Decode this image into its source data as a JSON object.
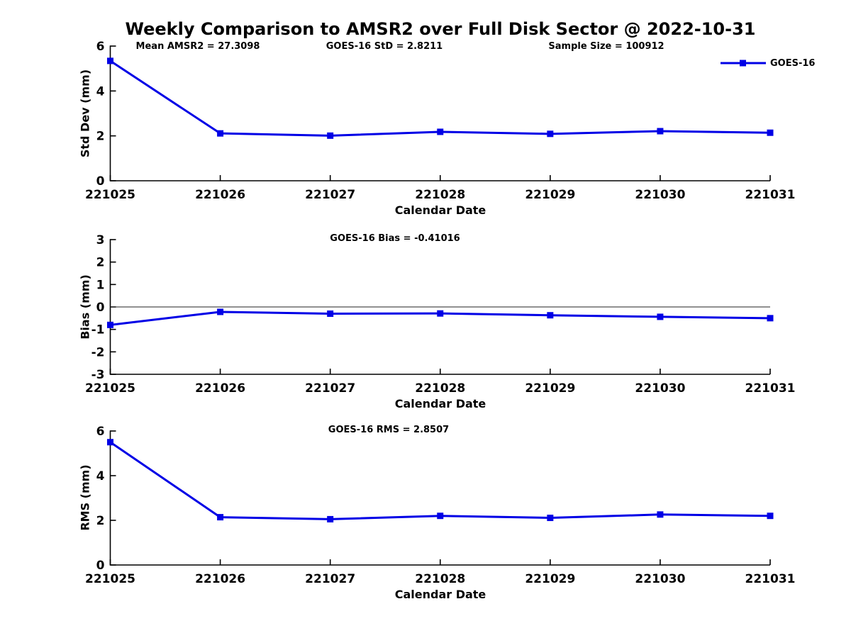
{
  "title": "Weekly Comparison to AMSR2 over Full Disk Sector @ 2022-10-31",
  "legend": {
    "label": "GOES-16"
  },
  "colors": {
    "line": "#0000E6",
    "axis": "#000000",
    "zero_line": "#222222"
  },
  "chart_data": [
    {
      "type": "line",
      "name": "std-dev",
      "annotations": [
        "Mean AMSR2 = 27.3098",
        "GOES-16 StD = 2.8211",
        "Sample Size = 100912"
      ],
      "xlabel": "Calendar Date",
      "ylabel": "Std Dev (mm)",
      "categories": [
        "221025",
        "221026",
        "221027",
        "221028",
        "221029",
        "221030",
        "221031"
      ],
      "series": [
        {
          "name": "GOES-16",
          "values": [
            5.34,
            2.11,
            2.01,
            2.18,
            2.09,
            2.21,
            2.14
          ]
        }
      ],
      "ylim": [
        0,
        6
      ],
      "yticks": [
        0,
        2,
        4,
        6
      ],
      "zero_line": false,
      "grid": false,
      "legend_position": "top-right"
    },
    {
      "type": "line",
      "name": "bias",
      "annotations": [
        "GOES-16 Bias  = -0.41016"
      ],
      "xlabel": "Calendar Date",
      "ylabel": "Bias (mm)",
      "categories": [
        "221025",
        "221026",
        "221027",
        "221028",
        "221029",
        "221030",
        "221031"
      ],
      "series": [
        {
          "name": "GOES-16",
          "values": [
            -0.8,
            -0.22,
            -0.3,
            -0.29,
            -0.37,
            -0.44,
            -0.5
          ]
        }
      ],
      "ylim": [
        -3,
        3
      ],
      "yticks": [
        -3,
        -2,
        -1,
        0,
        1,
        2,
        3
      ],
      "zero_line": true,
      "grid": false
    },
    {
      "type": "line",
      "name": "rms",
      "annotations": [
        "GOES-16 RMS = 2.8507"
      ],
      "xlabel": "Calendar Date",
      "ylabel": "RMS (mm)",
      "categories": [
        "221025",
        "221026",
        "221027",
        "221028",
        "221029",
        "221030",
        "221031"
      ],
      "series": [
        {
          "name": "GOES-16",
          "values": [
            5.5,
            2.14,
            2.05,
            2.2,
            2.11,
            2.26,
            2.2
          ]
        }
      ],
      "ylim": [
        0,
        6
      ],
      "yticks": [
        0,
        2,
        4,
        6
      ],
      "zero_line": false,
      "grid": false
    }
  ]
}
